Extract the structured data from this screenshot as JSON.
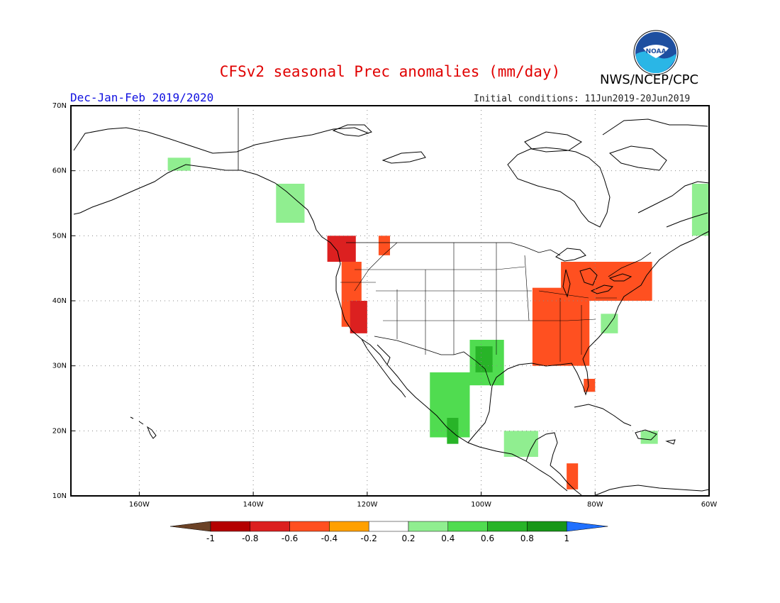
{
  "header": {
    "title": "CFSv2 seasonal Prec anomalies (mm/day)",
    "organization": "NWS/NCEP/CPC",
    "logo_text": "NOAA",
    "season": "Dec-Jan-Feb 2019/2020",
    "initial_conditions": "Initial conditions: 11Jun2019-20Jun2019"
  },
  "map": {
    "type": "filled-grid-anomaly-map",
    "lon_range": [
      -172,
      -60
    ],
    "lat_range": [
      10,
      70
    ],
    "grid": "dotted",
    "lat_ticks": [
      {
        "value": 70,
        "label": "70N"
      },
      {
        "value": 60,
        "label": "60N"
      },
      {
        "value": 50,
        "label": "50N"
      },
      {
        "value": 40,
        "label": "40N"
      },
      {
        "value": 30,
        "label": "30N"
      },
      {
        "value": 20,
        "label": "20N"
      },
      {
        "value": 10,
        "label": "10N"
      }
    ],
    "lon_ticks": [
      {
        "value": -160,
        "label": "160W"
      },
      {
        "value": -140,
        "label": "140W"
      },
      {
        "value": -120,
        "label": "120W"
      },
      {
        "value": -100,
        "label": "100W"
      },
      {
        "value": -80,
        "label": "80W"
      },
      {
        "value": -60,
        "label": "60W"
      }
    ],
    "anomaly_regions": [
      {
        "name": "pacific-northwest-coast",
        "level": -0.6,
        "lon": [
          -127,
          -122
        ],
        "lat": [
          46,
          50
        ]
      },
      {
        "name": "oregon-california-coast",
        "level": -0.4,
        "lon": [
          -124.5,
          -121
        ],
        "lat": [
          36,
          46
        ]
      },
      {
        "name": "central-california-core",
        "level": -0.6,
        "lon": [
          -123,
          -120
        ],
        "lat": [
          35,
          40
        ]
      },
      {
        "name": "northern-rockies",
        "level": -0.4,
        "lon": [
          -118,
          -116
        ],
        "lat": [
          47,
          50
        ]
      },
      {
        "name": "ohio-tennessee-valley",
        "level": -0.4,
        "lon": [
          -91,
          -81
        ],
        "lat": [
          30,
          42
        ]
      },
      {
        "name": "great-lakes-northeast",
        "level": -0.4,
        "lon": [
          -86,
          -70
        ],
        "lat": [
          40,
          46
        ]
      },
      {
        "name": "florida-peninsula",
        "level": -0.4,
        "lon": [
          -82,
          -80
        ],
        "lat": [
          26,
          28
        ]
      },
      {
        "name": "central-america",
        "level": -0.4,
        "lon": [
          -85,
          -83
        ],
        "lat": [
          11,
          15
        ]
      },
      {
        "name": "mexico-west",
        "level": 0.4,
        "lon": [
          -109,
          -102
        ],
        "lat": [
          19,
          29
        ]
      },
      {
        "name": "texas",
        "level": 0.4,
        "lon": [
          -102,
          -96
        ],
        "lat": [
          27,
          34
        ]
      },
      {
        "name": "mexico-southwest-core",
        "level": 0.6,
        "lon": [
          -106,
          -104
        ],
        "lat": [
          18,
          22
        ]
      },
      {
        "name": "east-texas-core",
        "level": 0.6,
        "lon": [
          -101,
          -98
        ],
        "lat": [
          29,
          33
        ]
      },
      {
        "name": "gulf-of-mexico-south",
        "level": 0.2,
        "lon": [
          -96,
          -90
        ],
        "lat": [
          16,
          20
        ]
      },
      {
        "name": "alaska-panhandle",
        "level": 0.2,
        "lon": [
          -136,
          -131
        ],
        "lat": [
          52,
          58
        ]
      },
      {
        "name": "labrador",
        "level": 0.2,
        "lon": [
          -63,
          -60
        ],
        "lat": [
          50,
          58
        ]
      },
      {
        "name": "caribbean",
        "level": 0.2,
        "lon": [
          -72,
          -69
        ],
        "lat": [
          18,
          20
        ]
      },
      {
        "name": "virginia-carolina",
        "level": 0.2,
        "lon": [
          -79,
          -76
        ],
        "lat": [
          35,
          38
        ]
      },
      {
        "name": "south-alaska",
        "level": 0.2,
        "lon": [
          -155,
          -151
        ],
        "lat": [
          60,
          62
        ]
      }
    ]
  },
  "legend": {
    "labels": [
      "-1",
      "-0.8",
      "-0.6",
      "-0.4",
      "-0.2",
      "0.2",
      "0.4",
      "0.6",
      "0.8",
      "1"
    ],
    "colors": [
      "#6b4226",
      "#b40000",
      "#dc2020",
      "#ff5020",
      "#ffa000",
      "#ffffff",
      "#90ee90",
      "#50dc50",
      "#28b428",
      "#189618",
      "#2070ff"
    ]
  }
}
